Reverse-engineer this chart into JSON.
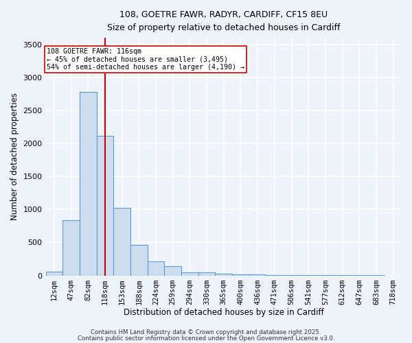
{
  "title_line1": "108, GOETRE FAWR, RADYR, CARDIFF, CF15 8EU",
  "title_line2": "Size of property relative to detached houses in Cardiff",
  "xlabel": "Distribution of detached houses by size in Cardiff",
  "ylabel": "Number of detached properties",
  "bar_labels": [
    "12sqm",
    "47sqm",
    "82sqm",
    "118sqm",
    "153sqm",
    "188sqm",
    "224sqm",
    "259sqm",
    "294sqm",
    "330sqm",
    "365sqm",
    "400sqm",
    "436sqm",
    "471sqm",
    "506sqm",
    "541sqm",
    "577sqm",
    "612sqm",
    "647sqm",
    "683sqm",
    "718sqm"
  ],
  "bar_values": [
    60,
    840,
    2780,
    2120,
    1020,
    460,
    210,
    140,
    50,
    50,
    30,
    20,
    20,
    5,
    3,
    2,
    2,
    1,
    1,
    1,
    0
  ],
  "bar_color": "#ccdded",
  "bar_edgecolor": "#5b9bd5",
  "bar_linewidth": 0.8,
  "redline_index": 3,
  "redline_color": "#cc0000",
  "redline_linewidth": 1.5,
  "annotation_text": "108 GOETRE FAWR: 116sqm\n← 45% of detached houses are smaller (3,495)\n54% of semi-detached houses are larger (4,190) →",
  "ylim": [
    0,
    3600
  ],
  "yticks": [
    0,
    500,
    1000,
    1500,
    2000,
    2500,
    3000,
    3500
  ],
  "bg_color": "#eef2f9",
  "grid_color": "#ffffff",
  "footer_line1": "Contains HM Land Registry data © Crown copyright and database right 2025.",
  "footer_line2": "Contains public sector information licensed under the Open Government Licence v3.0."
}
